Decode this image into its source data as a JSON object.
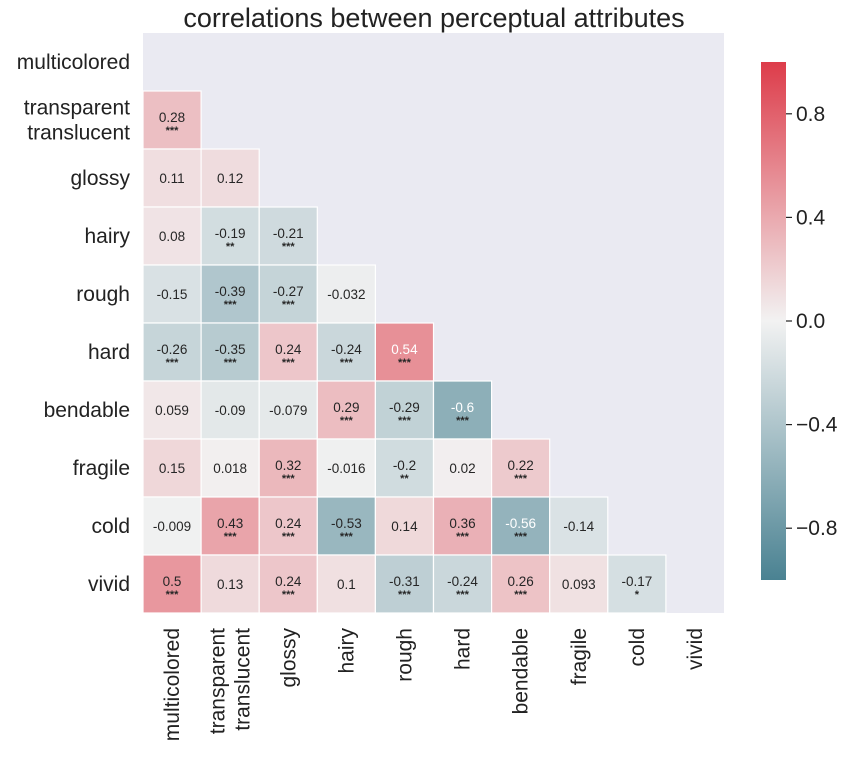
{
  "chart_data": {
    "type": "heatmap",
    "title": "correlations between perceptual attributes",
    "rows": [
      "multicolored",
      "transparent\ntranslucent",
      "glossy",
      "hairy",
      "rough",
      "hard",
      "bendable",
      "fragile",
      "cold",
      "vivid"
    ],
    "columns": [
      "multicolored",
      "transparent\ntranslucent",
      "glossy",
      "hairy",
      "rough",
      "hard",
      "bendable",
      "fragile",
      "cold",
      "vivid"
    ],
    "cells": [
      {
        "row": 1,
        "col": 0,
        "value": 0.28,
        "label": "0.28",
        "sig": "***"
      },
      {
        "row": 2,
        "col": 0,
        "value": 0.11,
        "label": "0.11",
        "sig": ""
      },
      {
        "row": 2,
        "col": 1,
        "value": 0.12,
        "label": "0.12",
        "sig": ""
      },
      {
        "row": 3,
        "col": 0,
        "value": 0.08,
        "label": "0.08",
        "sig": ""
      },
      {
        "row": 3,
        "col": 1,
        "value": -0.19,
        "label": "-0.19",
        "sig": "**"
      },
      {
        "row": 3,
        "col": 2,
        "value": -0.21,
        "label": "-0.21",
        "sig": "***"
      },
      {
        "row": 4,
        "col": 0,
        "value": -0.15,
        "label": "-0.15",
        "sig": ""
      },
      {
        "row": 4,
        "col": 1,
        "value": -0.39,
        "label": "-0.39",
        "sig": "***"
      },
      {
        "row": 4,
        "col": 2,
        "value": -0.27,
        "label": "-0.27",
        "sig": "***"
      },
      {
        "row": 4,
        "col": 3,
        "value": -0.032,
        "label": "-0.032",
        "sig": ""
      },
      {
        "row": 5,
        "col": 0,
        "value": -0.26,
        "label": "-0.26",
        "sig": "***"
      },
      {
        "row": 5,
        "col": 1,
        "value": -0.35,
        "label": "-0.35",
        "sig": "***"
      },
      {
        "row": 5,
        "col": 2,
        "value": 0.24,
        "label": "0.24",
        "sig": "***"
      },
      {
        "row": 5,
        "col": 3,
        "value": -0.24,
        "label": "-0.24",
        "sig": "***"
      },
      {
        "row": 5,
        "col": 4,
        "value": 0.54,
        "label": "0.54",
        "sig": "***"
      },
      {
        "row": 6,
        "col": 0,
        "value": 0.059,
        "label": "0.059",
        "sig": ""
      },
      {
        "row": 6,
        "col": 1,
        "value": -0.09,
        "label": "-0.09",
        "sig": ""
      },
      {
        "row": 6,
        "col": 2,
        "value": -0.079,
        "label": "-0.079",
        "sig": ""
      },
      {
        "row": 6,
        "col": 3,
        "value": 0.29,
        "label": "0.29",
        "sig": "***"
      },
      {
        "row": 6,
        "col": 4,
        "value": -0.29,
        "label": "-0.29",
        "sig": "***"
      },
      {
        "row": 6,
        "col": 5,
        "value": -0.6,
        "label": "-0.6",
        "sig": "***"
      },
      {
        "row": 7,
        "col": 0,
        "value": 0.15,
        "label": "0.15",
        "sig": ""
      },
      {
        "row": 7,
        "col": 1,
        "value": 0.018,
        "label": "0.018",
        "sig": ""
      },
      {
        "row": 7,
        "col": 2,
        "value": 0.32,
        "label": "0.32",
        "sig": "***"
      },
      {
        "row": 7,
        "col": 3,
        "value": -0.016,
        "label": "-0.016",
        "sig": ""
      },
      {
        "row": 7,
        "col": 4,
        "value": -0.2,
        "label": "-0.2",
        "sig": "**"
      },
      {
        "row": 7,
        "col": 5,
        "value": 0.02,
        "label": "0.02",
        "sig": ""
      },
      {
        "row": 7,
        "col": 6,
        "value": 0.22,
        "label": "0.22",
        "sig": "***"
      },
      {
        "row": 8,
        "col": 0,
        "value": -0.009,
        "label": "-0.009",
        "sig": ""
      },
      {
        "row": 8,
        "col": 1,
        "value": 0.43,
        "label": "0.43",
        "sig": "***"
      },
      {
        "row": 8,
        "col": 2,
        "value": 0.24,
        "label": "0.24",
        "sig": "***"
      },
      {
        "row": 8,
        "col": 3,
        "value": -0.53,
        "label": "-0.53",
        "sig": "***"
      },
      {
        "row": 8,
        "col": 4,
        "value": 0.14,
        "label": "0.14",
        "sig": ""
      },
      {
        "row": 8,
        "col": 5,
        "value": 0.36,
        "label": "0.36",
        "sig": "***"
      },
      {
        "row": 8,
        "col": 6,
        "value": -0.56,
        "label": "-0.56",
        "sig": "***"
      },
      {
        "row": 8,
        "col": 7,
        "value": -0.14,
        "label": "-0.14",
        "sig": ""
      },
      {
        "row": 9,
        "col": 0,
        "value": 0.5,
        "label": "0.5",
        "sig": "***"
      },
      {
        "row": 9,
        "col": 1,
        "value": 0.13,
        "label": "0.13",
        "sig": ""
      },
      {
        "row": 9,
        "col": 2,
        "value": 0.24,
        "label": "0.24",
        "sig": "***"
      },
      {
        "row": 9,
        "col": 3,
        "value": 0.1,
        "label": "0.1",
        "sig": ""
      },
      {
        "row": 9,
        "col": 4,
        "value": -0.31,
        "label": "-0.31",
        "sig": "***"
      },
      {
        "row": 9,
        "col": 5,
        "value": -0.24,
        "label": "-0.24",
        "sig": "***"
      },
      {
        "row": 9,
        "col": 6,
        "value": 0.26,
        "label": "0.26",
        "sig": "***"
      },
      {
        "row": 9,
        "col": 7,
        "value": 0.093,
        "label": "0.093",
        "sig": ""
      },
      {
        "row": 9,
        "col": 8,
        "value": -0.17,
        "label": "-0.17",
        "sig": "*"
      }
    ],
    "vlim": [
      -1,
      1
    ],
    "colorbar": {
      "ticks": [
        0.8,
        0.4,
        0.0,
        -0.4,
        -0.8
      ],
      "tick_labels": [
        "0.8",
        "0.4",
        "0.0",
        "−0.4",
        "−0.8"
      ]
    },
    "colors": {
      "negative": "#4a8292",
      "neutral": "#f2f2f2",
      "positive": "#dd3c4a",
      "background": "#eaeaf2",
      "grid": "#ffffff"
    },
    "masked": "upper triangle including diagonal"
  }
}
